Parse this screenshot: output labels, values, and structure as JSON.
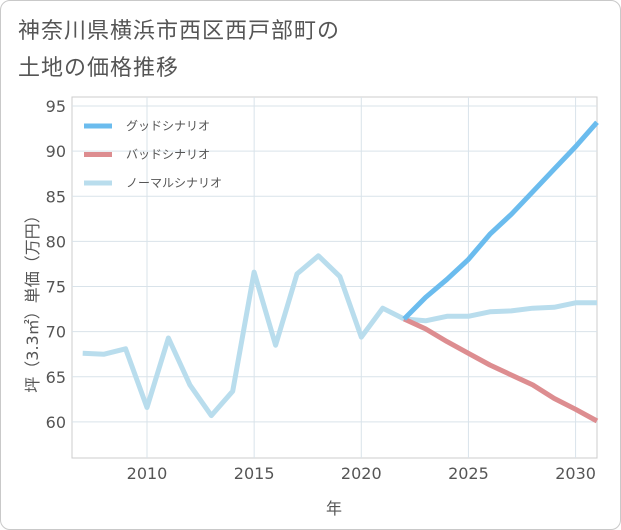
{
  "chart_data": {
    "type": "line",
    "title_line1": "神奈川県横浜市西区西戸部町の",
    "title_line2": "土地の価格推移",
    "xlabel": "年",
    "ylabel": "坪（3.3㎡）単価（万円）",
    "xlim": [
      2006.5,
      2031
    ],
    "ylim": [
      56,
      96
    ],
    "xticks": [
      2010,
      2015,
      2020,
      2025,
      2030
    ],
    "yticks": [
      60,
      65,
      70,
      75,
      80,
      85,
      90,
      95
    ],
    "legend_position": "top-left",
    "series": [
      {
        "name": "グッドシナリオ",
        "color": "#6bbcee",
        "points": [
          [
            2022,
            71.4
          ],
          [
            2023,
            73.8
          ],
          [
            2024,
            75.8
          ],
          [
            2025,
            78.0
          ],
          [
            2026,
            80.8
          ],
          [
            2027,
            83.0
          ],
          [
            2028,
            85.5
          ],
          [
            2029,
            88.0
          ],
          [
            2030,
            90.5
          ],
          [
            2031,
            93.2
          ]
        ]
      },
      {
        "name": "バッドシナリオ",
        "color": "#dd8d90",
        "points": [
          [
            2022,
            71.4
          ],
          [
            2023,
            70.3
          ],
          [
            2024,
            68.9
          ],
          [
            2025,
            67.6
          ],
          [
            2026,
            66.3
          ],
          [
            2027,
            65.2
          ],
          [
            2028,
            64.1
          ],
          [
            2029,
            62.6
          ],
          [
            2030,
            61.4
          ],
          [
            2031,
            60.1
          ]
        ]
      },
      {
        "name": "ノーマルシナリオ",
        "color": "#b9dded",
        "points": [
          [
            2007,
            67.6
          ],
          [
            2008,
            67.5
          ],
          [
            2009,
            68.1
          ],
          [
            2010,
            61.6
          ],
          [
            2011,
            69.3
          ],
          [
            2012,
            64.1
          ],
          [
            2013,
            60.7
          ],
          [
            2014,
            63.4
          ],
          [
            2015,
            76.6
          ],
          [
            2016,
            68.5
          ],
          [
            2017,
            76.4
          ],
          [
            2018,
            78.4
          ],
          [
            2019,
            76.1
          ],
          [
            2020,
            69.4
          ],
          [
            2021,
            72.6
          ],
          [
            2022,
            71.4
          ],
          [
            2023,
            71.2
          ],
          [
            2024,
            71.7
          ],
          [
            2025,
            71.7
          ],
          [
            2026,
            72.2
          ],
          [
            2027,
            72.3
          ],
          [
            2028,
            72.6
          ],
          [
            2029,
            72.7
          ],
          [
            2030,
            73.2
          ],
          [
            2031,
            73.2
          ]
        ]
      }
    ]
  }
}
